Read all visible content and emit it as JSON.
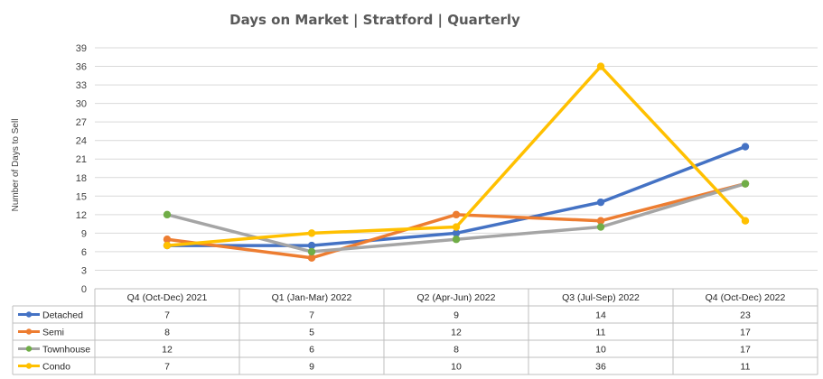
{
  "chart_data": {
    "type": "line",
    "title": "Days on Market | Stratford | Quarterly",
    "ylabel": "Number of Days to Sell",
    "xlabel": "",
    "ylim": [
      0,
      39
    ],
    "yticks": [
      0,
      3,
      6,
      9,
      12,
      15,
      18,
      21,
      24,
      27,
      30,
      33,
      36,
      39
    ],
    "yticks_text": [
      "0",
      "3",
      "6",
      "9",
      "12",
      "15",
      "18",
      "21",
      "24",
      "27",
      "30",
      "33",
      "36",
      "39"
    ],
    "grid": true,
    "legend": "data-table",
    "categories": [
      "Q4 (Oct-Dec) 2021",
      "Q1 (Jan-Mar) 2022",
      "Q2 (Apr-Jun) 2022",
      "Q3 (Jul-Sep) 2022",
      "Q4 (Oct-Dec) 2022"
    ],
    "series": [
      {
        "name": "Detached",
        "color": "#4472c4",
        "values": [
          7,
          7,
          9,
          14,
          23
        ],
        "values_text": [
          "7",
          "7",
          "9",
          "14",
          "23"
        ]
      },
      {
        "name": "Semi",
        "color": "#ed7d31",
        "values": [
          8,
          5,
          12,
          11,
          17
        ],
        "values_text": [
          "8",
          "5",
          "12",
          "11",
          "17"
        ]
      },
      {
        "name": "Townhouse",
        "color": "#a5a5a5",
        "marker": "#70ad47",
        "values": [
          12,
          6,
          8,
          10,
          17
        ],
        "values_text": [
          "12",
          "6",
          "8",
          "10",
          "17"
        ]
      },
      {
        "name": "Condo",
        "color": "#ffc000",
        "values": [
          7,
          9,
          10,
          36,
          11
        ],
        "values_text": [
          "7",
          "9",
          "10",
          "36",
          "11"
        ]
      }
    ]
  }
}
